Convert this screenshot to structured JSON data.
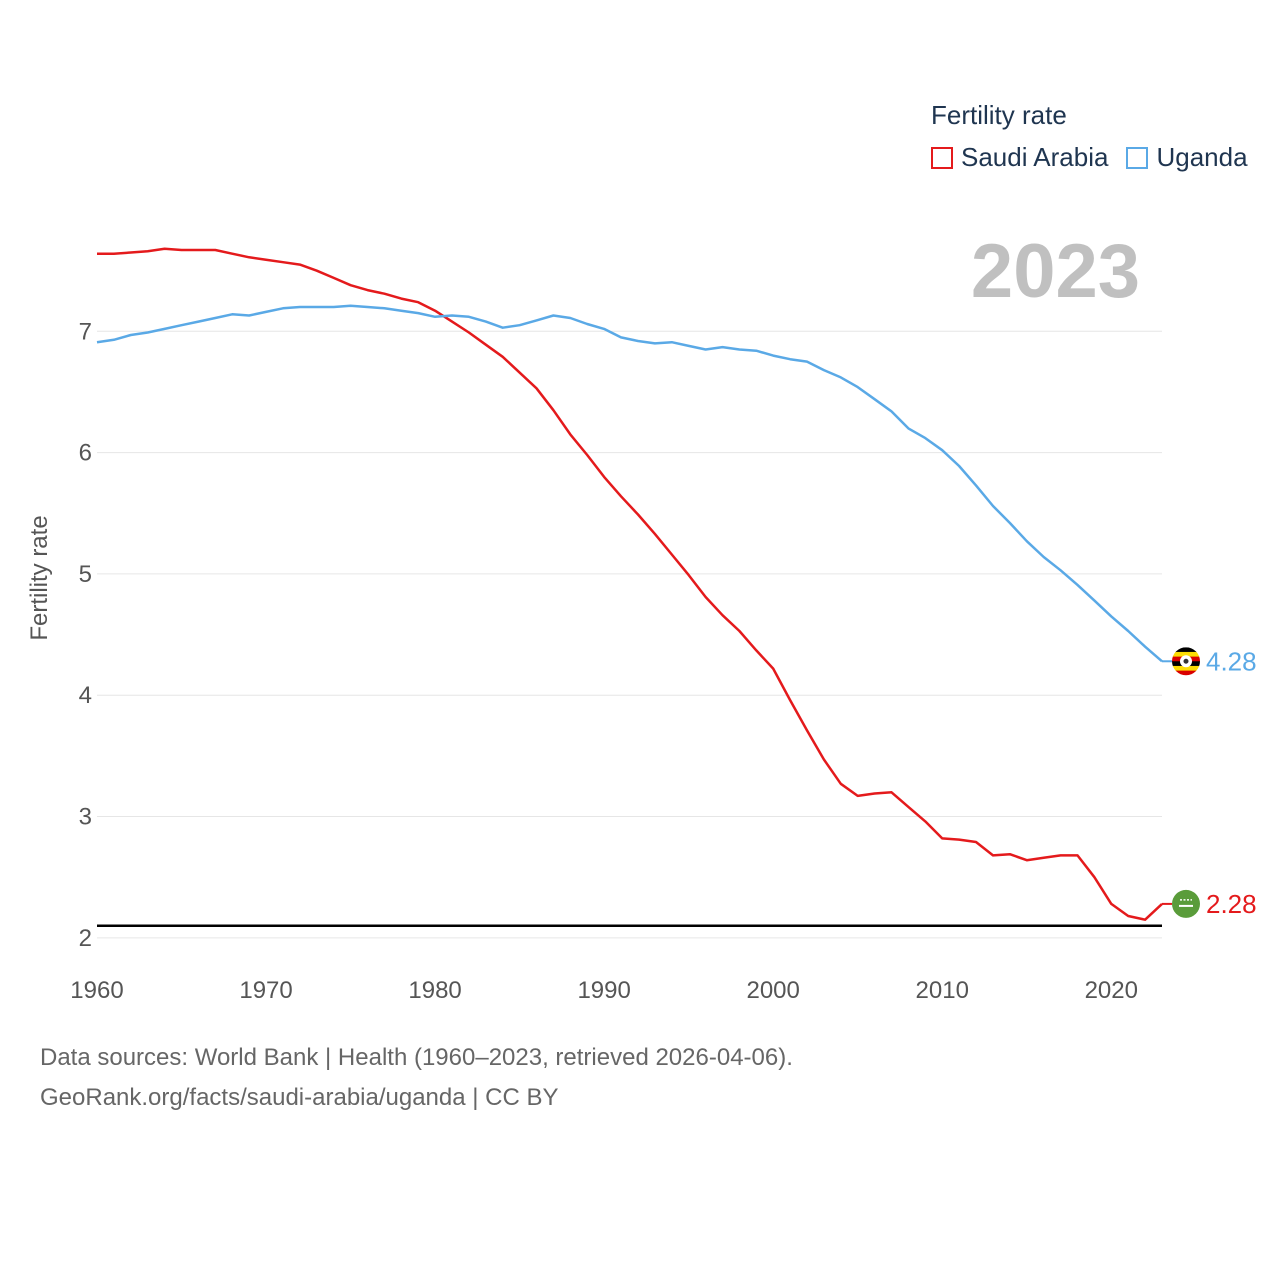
{
  "chart_data": {
    "type": "line",
    "legend_title": "Fertility rate",
    "ylabel": "Fertility rate",
    "xlabel": "",
    "year_label": "2023",
    "xlim": [
      1960,
      2023
    ],
    "ylim": [
      1.9,
      8.0
    ],
    "x_ticks": [
      1960,
      1970,
      1980,
      1990,
      2000,
      2010,
      2020
    ],
    "y_ticks": [
      2,
      3,
      4,
      5,
      6,
      7
    ],
    "reference_line": 2.1,
    "x": [
      1960,
      1961,
      1962,
      1963,
      1964,
      1965,
      1966,
      1967,
      1968,
      1969,
      1970,
      1971,
      1972,
      1973,
      1974,
      1975,
      1976,
      1977,
      1978,
      1979,
      1980,
      1981,
      1982,
      1983,
      1984,
      1985,
      1986,
      1987,
      1988,
      1989,
      1990,
      1991,
      1992,
      1993,
      1994,
      1995,
      1996,
      1997,
      1998,
      1999,
      2000,
      2001,
      2002,
      2003,
      2004,
      2005,
      2006,
      2007,
      2008,
      2009,
      2010,
      2011,
      2012,
      2013,
      2014,
      2015,
      2016,
      2017,
      2018,
      2019,
      2020,
      2021,
      2022,
      2023
    ],
    "series": [
      {
        "name": "Saudi Arabia",
        "color": "#e41a1c",
        "end_value_label": "2.28",
        "values": [
          7.64,
          7.64,
          7.65,
          7.66,
          7.68,
          7.67,
          7.67,
          7.67,
          7.64,
          7.61,
          7.59,
          7.57,
          7.55,
          7.5,
          7.44,
          7.38,
          7.34,
          7.31,
          7.27,
          7.24,
          7.17,
          7.08,
          6.99,
          6.89,
          6.79,
          6.66,
          6.53,
          6.35,
          6.15,
          5.98,
          5.8,
          5.64,
          5.49,
          5.33,
          5.16,
          4.99,
          4.81,
          4.66,
          4.53,
          4.37,
          4.22,
          3.96,
          3.71,
          3.47,
          3.27,
          3.17,
          3.19,
          3.2,
          3.08,
          2.96,
          2.82,
          2.81,
          2.79,
          2.68,
          2.69,
          2.64,
          2.66,
          2.68,
          2.68,
          2.5,
          2.28,
          2.18,
          2.15,
          2.28
        ]
      },
      {
        "name": "Uganda",
        "color": "#5aa9e6",
        "end_value_label": "4.28",
        "values": [
          6.91,
          6.93,
          6.97,
          6.99,
          7.02,
          7.05,
          7.08,
          7.11,
          7.14,
          7.13,
          7.16,
          7.19,
          7.2,
          7.2,
          7.2,
          7.21,
          7.2,
          7.19,
          7.17,
          7.15,
          7.12,
          7.13,
          7.12,
          7.08,
          7.03,
          7.05,
          7.09,
          7.13,
          7.11,
          7.06,
          7.02,
          6.95,
          6.92,
          6.9,
          6.91,
          6.88,
          6.85,
          6.87,
          6.85,
          6.84,
          6.8,
          6.77,
          6.75,
          6.68,
          6.62,
          6.54,
          6.44,
          6.34,
          6.2,
          6.12,
          6.02,
          5.89,
          5.73,
          5.56,
          5.42,
          5.27,
          5.14,
          5.03,
          4.91,
          4.78,
          4.65,
          4.53,
          4.4,
          4.28
        ]
      }
    ]
  },
  "footer": {
    "sources": "Data sources: World Bank | Health (1960–2023, retrieved 2026-04-06).",
    "credit": "GeoRank.org/facts/saudi-arabia/uganda | CC BY"
  }
}
